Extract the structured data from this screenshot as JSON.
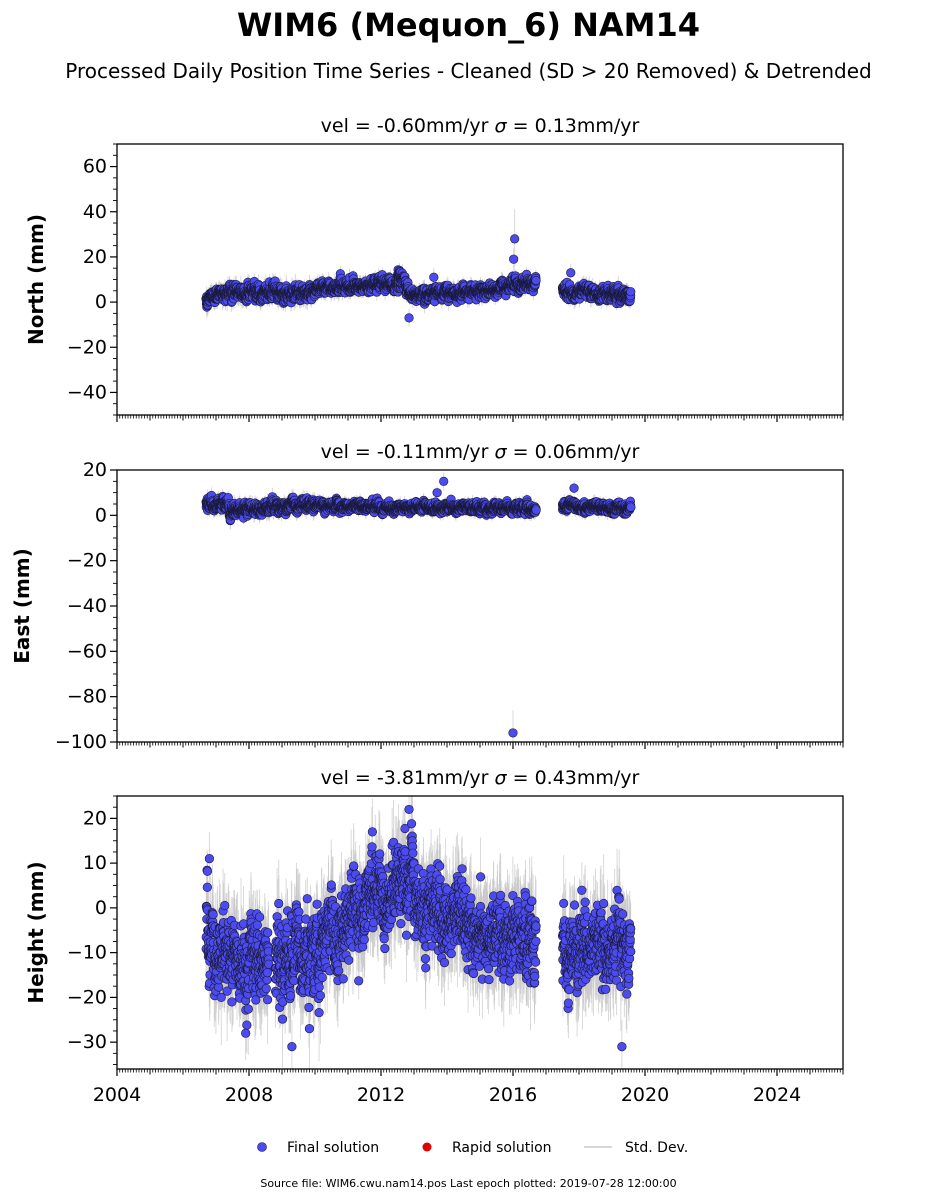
{
  "page": {
    "title": "WIM6 (Mequon_6) NAM14",
    "subtitle": "Processed Daily Position Time Series - Cleaned (SD > 20 Removed) & Detrended",
    "source_note": "Source file: WIM6.cwu.nam14.pos  Last epoch plotted: 2019-07-28 12:00:00"
  },
  "colors": {
    "final_fill": "#4b4bf0",
    "final_edge": "#1a1a3a",
    "rapid_fill": "#e00000",
    "stddev_line": "#c8c8c8",
    "axis": "#000000"
  },
  "chart_data": [
    {
      "type": "scatter",
      "component": "north",
      "title_vel": "vel = -0.60mm/yr",
      "title_sigma": "= 0.13mm/yr",
      "ylabel": "North (mm)",
      "xlim": [
        2004,
        2026
      ],
      "ylim": [
        -50,
        70
      ],
      "yticks": [
        -40,
        -20,
        0,
        20,
        40,
        60
      ],
      "yminor_step": 5,
      "outliers": [
        {
          "x": 2016.05,
          "y": 28,
          "err": 13
        },
        {
          "x": 2016.02,
          "y": 19,
          "err": 5
        },
        {
          "x": 2017.75,
          "y": 13,
          "err": 4
        },
        {
          "x": 2013.6,
          "y": 11,
          "err": 4
        },
        {
          "x": 2012.85,
          "y": -7,
          "err": 4
        }
      ],
      "segments": [
        {
          "x0": 2006.7,
          "x1": 2007.4,
          "base": 2,
          "end": 5,
          "noise": 2.0,
          "err": 3.5
        },
        {
          "x0": 2007.4,
          "x1": 2009.0,
          "base": 5,
          "end": 4,
          "noise": 2.5,
          "err": 3.5
        },
        {
          "x0": 2009.0,
          "x1": 2010.0,
          "base": 3,
          "end": 5,
          "noise": 2.5,
          "err": 3.5
        },
        {
          "x0": 2010.0,
          "x1": 2012.7,
          "base": 6,
          "end": 8,
          "noise": 2.0,
          "err": 3.0
        },
        {
          "x0": 2012.5,
          "x1": 2012.9,
          "base": 13,
          "end": 5,
          "noise": 2.0,
          "err": 3.0
        },
        {
          "x0": 2012.9,
          "x1": 2015.6,
          "base": 3,
          "end": 5,
          "noise": 2.0,
          "err": 3.0
        },
        {
          "x0": 2015.6,
          "x1": 2016.7,
          "base": 6,
          "end": 9,
          "noise": 2.2,
          "err": 3.0
        },
        {
          "x0": 2017.5,
          "x1": 2019.57,
          "base": 5,
          "end": 3,
          "noise": 2.2,
          "err": 3.0
        }
      ]
    },
    {
      "type": "scatter",
      "component": "east",
      "title_vel": "vel = -0.11mm/yr",
      "title_sigma": "= 0.06mm/yr",
      "ylabel": "East (mm)",
      "xlim": [
        2004,
        2026
      ],
      "ylim": [
        -100,
        20
      ],
      "yticks": [
        -100,
        -80,
        -60,
        -40,
        -20,
        0,
        20
      ],
      "yminor_step": 5,
      "outliers": [
        {
          "x": 2016.0,
          "y": -96,
          "err": 10
        },
        {
          "x": 2013.9,
          "y": 15,
          "err": 4
        },
        {
          "x": 2013.7,
          "y": 10,
          "err": 3
        },
        {
          "x": 2017.85,
          "y": 12,
          "err": 3
        }
      ],
      "segments": [
        {
          "x0": 2006.7,
          "x1": 2007.4,
          "base": 5,
          "end": 5,
          "noise": 2.0,
          "err": 3.0
        },
        {
          "x0": 2007.4,
          "x1": 2009.0,
          "base": 2,
          "end": 4,
          "noise": 2.0,
          "err": 3.0
        },
        {
          "x0": 2009.0,
          "x1": 2010.0,
          "base": 4,
          "end": 5,
          "noise": 2.0,
          "err": 3.0
        },
        {
          "x0": 2010.0,
          "x1": 2016.7,
          "base": 4,
          "end": 3,
          "noise": 1.5,
          "err": 2.5
        },
        {
          "x0": 2017.5,
          "x1": 2019.57,
          "base": 4,
          "end": 3,
          "noise": 1.5,
          "err": 2.5
        }
      ]
    },
    {
      "type": "scatter",
      "component": "height",
      "title_vel": "vel = -3.81mm/yr",
      "title_sigma": "= 0.43mm/yr",
      "ylabel": "Height (mm)",
      "xlim": [
        2004,
        2026
      ],
      "ylim": [
        -36,
        25
      ],
      "yticks": [
        -30,
        -20,
        -10,
        0,
        10,
        20
      ],
      "yminor_step": 2.5,
      "outliers": [
        {
          "x": 2012.85,
          "y": 22,
          "err": 6
        },
        {
          "x": 2006.8,
          "y": 11,
          "err": 6
        },
        {
          "x": 2009.3,
          "y": -31,
          "err": 6
        },
        {
          "x": 2019.3,
          "y": -31,
          "err": 6
        },
        {
          "x": 2007.9,
          "y": -28,
          "err": 6
        }
      ],
      "segments": [
        {
          "x0": 2006.7,
          "x1": 2007.6,
          "base": -6,
          "end": -14,
          "noise": 6.5,
          "err": 8
        },
        {
          "x0": 2007.6,
          "x1": 2008.6,
          "base": -10,
          "end": -12,
          "noise": 6.0,
          "err": 8
        },
        {
          "x0": 2008.8,
          "x1": 2010.0,
          "base": -12,
          "end": -10,
          "noise": 6.5,
          "err": 8
        },
        {
          "x0": 2010.0,
          "x1": 2011.5,
          "base": -8,
          "end": -3,
          "noise": 6.0,
          "err": 8
        },
        {
          "x0": 2011.5,
          "x1": 2013.0,
          "base": 0,
          "end": 7,
          "noise": 6.0,
          "err": 8
        },
        {
          "x0": 2013.0,
          "x1": 2014.6,
          "base": 2,
          "end": -6,
          "noise": 6.0,
          "err": 8
        },
        {
          "x0": 2014.6,
          "x1": 2016.7,
          "base": -6,
          "end": -9,
          "noise": 6.0,
          "err": 8
        },
        {
          "x0": 2017.5,
          "x1": 2019.57,
          "base": -10,
          "end": -8,
          "noise": 6.0,
          "err": 8
        }
      ]
    }
  ],
  "xaxis": {
    "tick_labels": [
      "2004",
      "2008",
      "2012",
      "2016",
      "2020",
      "2024"
    ],
    "tick_values": [
      2004,
      2008,
      2012,
      2016,
      2020,
      2024
    ]
  },
  "legend": {
    "final": "Final solution",
    "rapid": "Rapid solution",
    "stddev": "Std. Dev."
  }
}
